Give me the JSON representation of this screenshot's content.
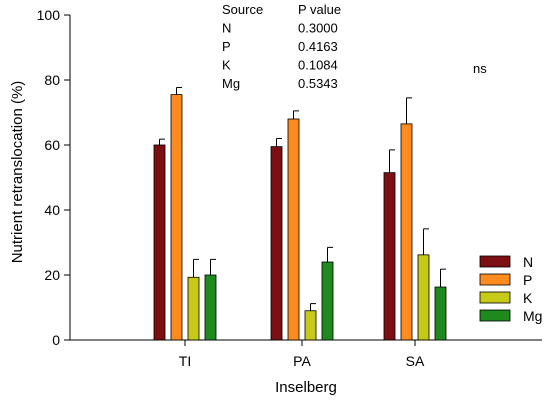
{
  "chart_data": {
    "type": "bar",
    "xlabel": "Inselberg",
    "ylabel": "Nutrient retranslocation (%)",
    "ylim": [
      0,
      100
    ],
    "yticks": [
      0,
      20,
      40,
      60,
      80,
      100
    ],
    "categories": [
      "TI",
      "PA",
      "SA"
    ],
    "series": [
      {
        "name": "N",
        "color": "#7b0f12",
        "values": [
          60,
          59.5,
          51.5
        ],
        "errors": [
          1.8,
          2.5,
          7
        ]
      },
      {
        "name": "P",
        "color": "#ff8a1d",
        "values": [
          75.5,
          68,
          66.5
        ],
        "errors": [
          2.2,
          2.5,
          8
        ]
      },
      {
        "name": "K",
        "color": "#c6c915",
        "values": [
          19.3,
          9,
          26.2
        ],
        "errors": [
          5.5,
          2.2,
          8
        ]
      },
      {
        "name": "Mg",
        "color": "#1e8a1e",
        "values": [
          20,
          24,
          16.3
        ],
        "errors": [
          4.8,
          4.5,
          5.5
        ]
      }
    ],
    "stats_table": {
      "header": [
        "Source",
        "P value"
      ],
      "rows": [
        [
          "N",
          "0.3000"
        ],
        [
          "P",
          "0.4163"
        ],
        [
          "K",
          "0.1084"
        ],
        [
          "Mg",
          "0.5343"
        ]
      ]
    },
    "annotation": "ns",
    "legend_position": "right"
  }
}
